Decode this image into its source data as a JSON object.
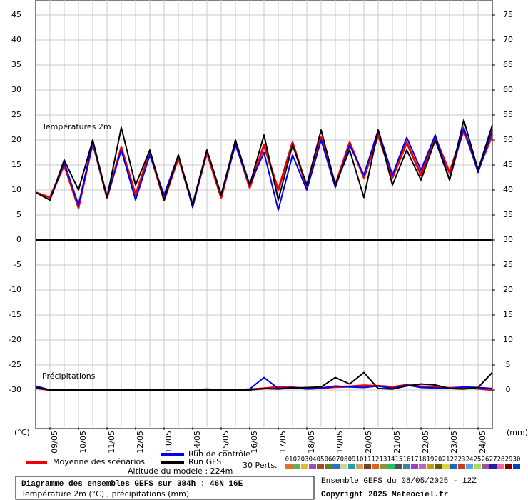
{
  "chart_data": [
    {
      "type": "line",
      "title": "Températures 2m",
      "ylabel": "(°C)",
      "x": [
        0,
        12,
        24,
        36,
        48,
        60,
        72,
        84,
        96,
        108,
        120,
        132,
        144,
        156,
        168,
        180,
        192,
        204,
        216,
        228,
        240,
        252,
        264,
        276,
        288,
        300,
        312,
        324,
        336,
        348,
        360,
        372,
        384
      ],
      "xlim": [
        0,
        384
      ],
      "xticks": [
        {
          "value": 12,
          "label": "09/05"
        },
        {
          "value": 36,
          "label": "10/05"
        },
        {
          "value": 60,
          "label": "11/05"
        },
        {
          "value": 84,
          "label": "12/05"
        },
        {
          "value": 108,
          "label": "13/05"
        },
        {
          "value": 132,
          "label": "14/05"
        },
        {
          "value": 156,
          "label": "15/05"
        },
        {
          "value": 180,
          "label": "16/05"
        },
        {
          "value": 204,
          "label": "17/05"
        },
        {
          "value": 228,
          "label": "18/05"
        },
        {
          "value": 252,
          "label": "19/05"
        },
        {
          "value": 276,
          "label": "20/05"
        },
        {
          "value": 300,
          "label": "21/05"
        },
        {
          "value": 324,
          "label": "22/05"
        },
        {
          "value": 348,
          "label": "23/05"
        },
        {
          "value": 372,
          "label": "24/05"
        }
      ],
      "ylim": [
        0,
        48
      ],
      "yticks": [
        5,
        10,
        15,
        20,
        25,
        30,
        35,
        40,
        45
      ],
      "y2lim": [
        30,
        78
      ],
      "y2ticks": [
        35,
        40,
        45,
        50,
        55,
        60,
        65,
        70,
        75
      ],
      "grid": true,
      "series": [
        {
          "name": "Moyenne des scénarios",
          "color": "#ee0000",
          "axis": "y",
          "values": [
            9.5,
            8.5,
            15,
            6.5,
            19.5,
            8.5,
            18.5,
            9,
            17.5,
            8,
            16.5,
            7,
            17.5,
            8.5,
            19.5,
            10.5,
            19,
            10,
            19.5,
            10.5,
            20.5,
            11,
            19.5,
            12.5,
            21,
            12.5,
            19.5,
            13,
            20.5,
            13.5,
            22,
            14,
            21
          ]
        },
        {
          "name": "Run de contrôle",
          "color": "#0000ee",
          "axis": "y",
          "values": [
            9.5,
            8,
            15.5,
            7,
            19.5,
            8.5,
            18,
            8,
            17,
            9,
            17,
            6.5,
            18,
            9,
            19,
            11,
            17.5,
            6,
            17,
            10,
            20,
            10.5,
            19,
            13,
            22,
            13,
            20.5,
            14,
            21,
            12,
            22.5,
            13.5,
            22
          ]
        },
        {
          "name": "Run GFS",
          "color": "#000000",
          "axis": "y",
          "values": [
            9.5,
            8,
            16,
            10,
            20,
            8.5,
            22.5,
            11,
            18,
            8,
            17,
            7,
            18,
            9,
            20,
            11,
            21,
            8,
            19,
            11,
            22,
            11,
            18,
            8.5,
            22,
            11,
            18,
            12,
            20,
            12,
            24,
            14,
            23
          ]
        }
      ]
    },
    {
      "type": "line",
      "title": "Précipitations",
      "y2label": "(mm)",
      "x": [
        0,
        12,
        24,
        36,
        48,
        60,
        72,
        84,
        96,
        108,
        120,
        132,
        144,
        156,
        168,
        180,
        192,
        204,
        216,
        228,
        240,
        252,
        264,
        276,
        288,
        300,
        312,
        324,
        336,
        348,
        360,
        372,
        384
      ],
      "xlim": [
        0,
        384
      ],
      "ylim": [
        -37.5,
        0
      ],
      "yticks": [
        -30,
        -25,
        -20,
        -15,
        -10,
        -5,
        0
      ],
      "y2lim": [
        -7.5,
        30
      ],
      "y2ticks": [
        0,
        5,
        10,
        15,
        20,
        25,
        30
      ],
      "grid": true,
      "series": [
        {
          "name": "Moyenne des scénarios",
          "color": "#ee0000",
          "axis": "y2",
          "values": [
            0.4,
            0,
            0,
            0,
            0,
            0,
            0,
            0,
            0,
            0,
            0,
            0,
            0,
            0,
            0,
            0.1,
            0.3,
            0.6,
            0.5,
            0.3,
            0.4,
            0.6,
            0.7,
            0.9,
            0.8,
            0.6,
            1,
            0.7,
            0.6,
            0.4,
            0.5,
            0.3,
            0
          ]
        },
        {
          "name": "Run de contrôle",
          "color": "#0000ee",
          "axis": "y2",
          "values": [
            0.8,
            0,
            0,
            0,
            0,
            0,
            0,
            0,
            0,
            0,
            0,
            0,
            0.2,
            0,
            0,
            0.2,
            2.5,
            0.3,
            0.5,
            0.2,
            0.3,
            0.8,
            0.6,
            0.5,
            0.8,
            0.3,
            1,
            0.5,
            0.4,
            0.3,
            0.6,
            0.5,
            0.3
          ]
        },
        {
          "name": "Run GFS",
          "color": "#000000",
          "axis": "y2",
          "values": [
            0.5,
            0,
            0,
            0,
            0,
            0,
            0,
            0,
            0,
            0,
            0,
            0,
            0,
            0,
            0,
            0,
            0.3,
            0.2,
            0.4,
            0.5,
            0.6,
            2.5,
            1.2,
            3.5,
            0.3,
            0.2,
            0.8,
            1.2,
            1,
            0.3,
            0.2,
            0.5,
            3.5
          ]
        }
      ]
    }
  ],
  "altitude": "Altitude du modele : 224m",
  "perturbations": {
    "label": "30 Perts.",
    "members": [
      {
        "name": "01",
        "color": "#e07030"
      },
      {
        "name": "02",
        "color": "#60b060"
      },
      {
        "name": "03",
        "color": "#e0c020"
      },
      {
        "name": "04",
        "color": "#9050c0"
      },
      {
        "name": "05",
        "color": "#a05020"
      },
      {
        "name": "06",
        "color": "#608020"
      },
      {
        "name": "07",
        "color": "#3070c0"
      },
      {
        "name": "08",
        "color": "#d0d0a0"
      },
      {
        "name": "09",
        "color": "#20a0a0"
      },
      {
        "name": "10",
        "color": "#d0a060"
      },
      {
        "name": "11",
        "color": "#704020"
      },
      {
        "name": "12",
        "color": "#e06020"
      },
      {
        "name": "13",
        "color": "#909040"
      },
      {
        "name": "14",
        "color": "#20c060"
      },
      {
        "name": "15",
        "color": "#505050"
      },
      {
        "name": "16",
        "color": "#4080a0"
      },
      {
        "name": "17",
        "color": "#a040c0"
      },
      {
        "name": "18",
        "color": "#c060c0"
      },
      {
        "name": "19",
        "color": "#c0a000"
      },
      {
        "name": "20",
        "color": "#606000"
      },
      {
        "name": "21",
        "color": "#e0d040"
      },
      {
        "name": "22",
        "color": "#2060c0"
      },
      {
        "name": "23",
        "color": "#c04020"
      },
      {
        "name": "24",
        "color": "#60a0e0"
      },
      {
        "name": "25",
        "color": "#a0e060"
      },
      {
        "name": "26",
        "color": "#a050a0"
      },
      {
        "name": "27",
        "color": "#2020a0"
      },
      {
        "name": "28",
        "color": "#ff60a0"
      },
      {
        "name": "29",
        "color": "#800000"
      },
      {
        "name": "30",
        "color": "#0040c0"
      }
    ]
  },
  "footer": {
    "title": "Diagramme des ensembles GEFS sur 384h : 46N 16E",
    "subtitle": "Température 2m (°C) , précipitations (mm)",
    "run": "Ensemble GEFS du 08/05/2025 - 12Z",
    "copyright": "Copyright 2025 Meteociel.fr"
  }
}
